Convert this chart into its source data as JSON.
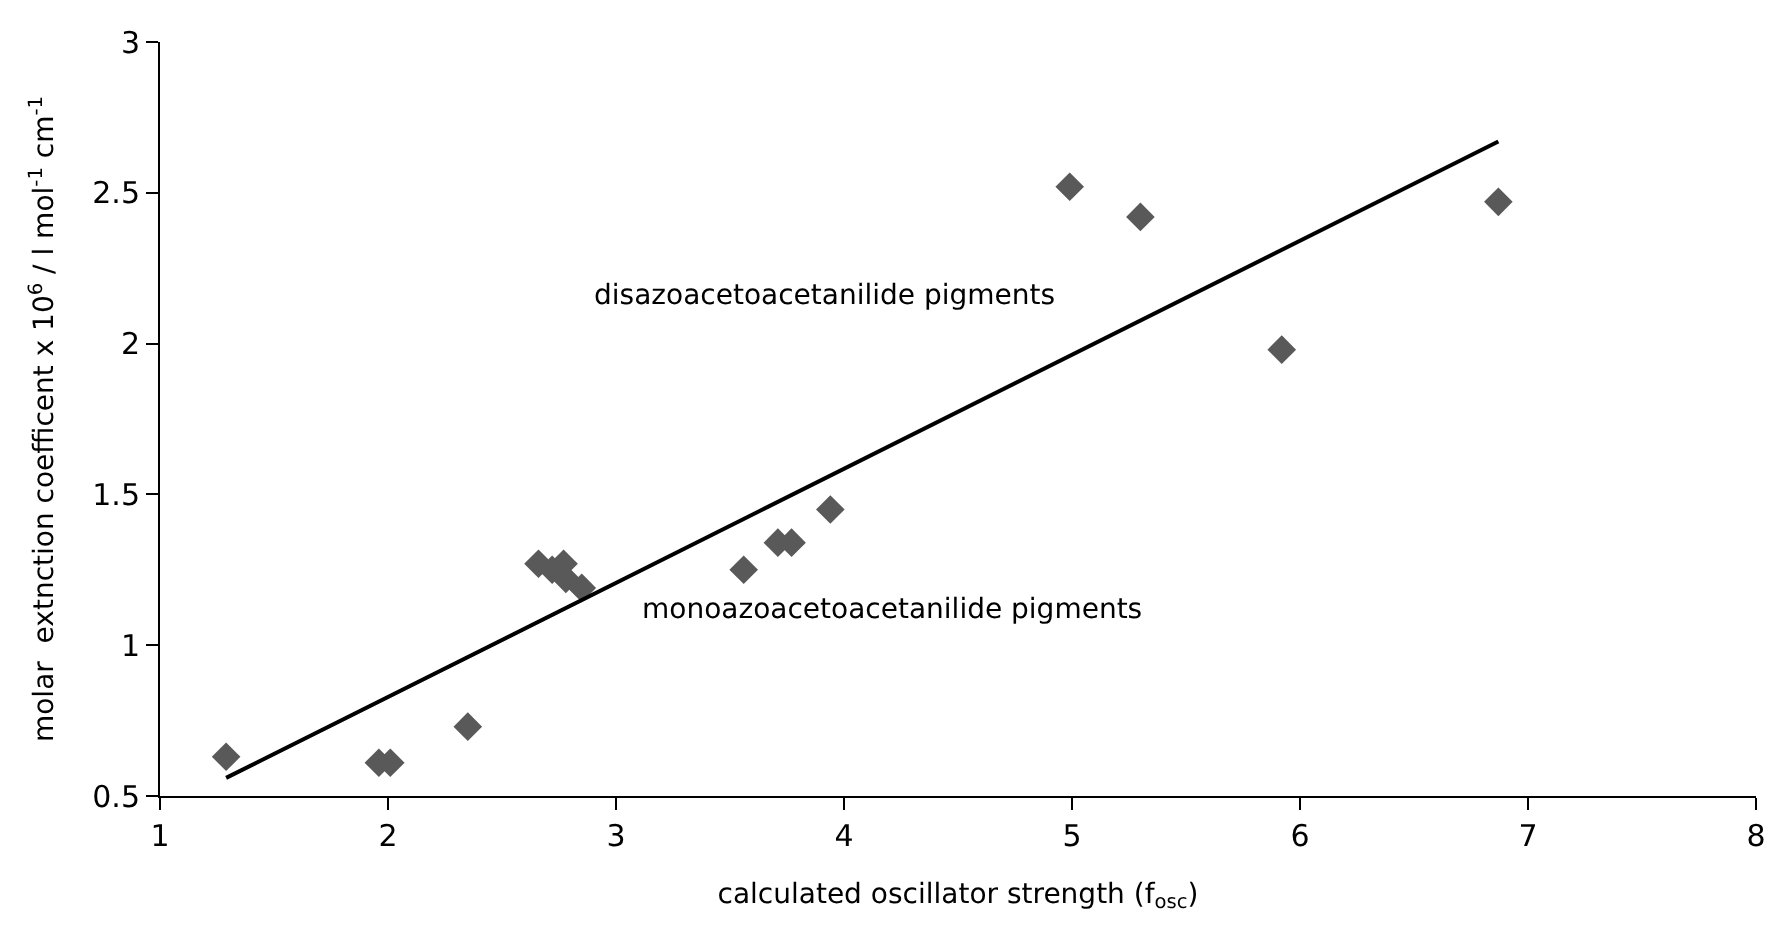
{
  "chart_data": {
    "type": "scatter",
    "xlabel": "calculated oscillator strength (f$_{osc}$)",
    "ylabel": "molar  extnction coefficent x 10$^{6}$ / l mol$^{-1}$ cm$^{-1}$",
    "annotations": [
      "disazoacetoacetanilide pigments",
      "monoazoacetoacetanilide pigments"
    ],
    "series": [
      {
        "color": "#595959",
        "marker": "diamond",
        "x": [
          1.29,
          1.96,
          2.01,
          2.35,
          2.66,
          2.72,
          2.77,
          2.78,
          2.85,
          3.56,
          3.71,
          3.77,
          3.94,
          4.99,
          5.3,
          5.92,
          6.87
        ],
        "values": [
          0.63,
          0.61,
          0.61,
          0.73,
          1.27,
          1.25,
          1.27,
          1.22,
          1.19,
          1.25,
          1.34,
          1.34,
          1.45,
          2.52,
          2.42,
          1.98,
          2.47
        ]
      },
      {
        "type": "line",
        "color": "#000000",
        "marker": "none",
        "x": [
          1.29,
          6.87
        ],
        "values": [
          0.56,
          2.67
        ]
      }
    ],
    "xlim": [
      1,
      8
    ],
    "xticks": [
      1,
      2,
      3,
      4,
      5,
      6,
      7,
      8
    ],
    "ylim": [
      0.5,
      3
    ],
    "yticks": [
      0.5,
      1,
      1.5,
      2,
      2.5,
      3
    ]
  }
}
